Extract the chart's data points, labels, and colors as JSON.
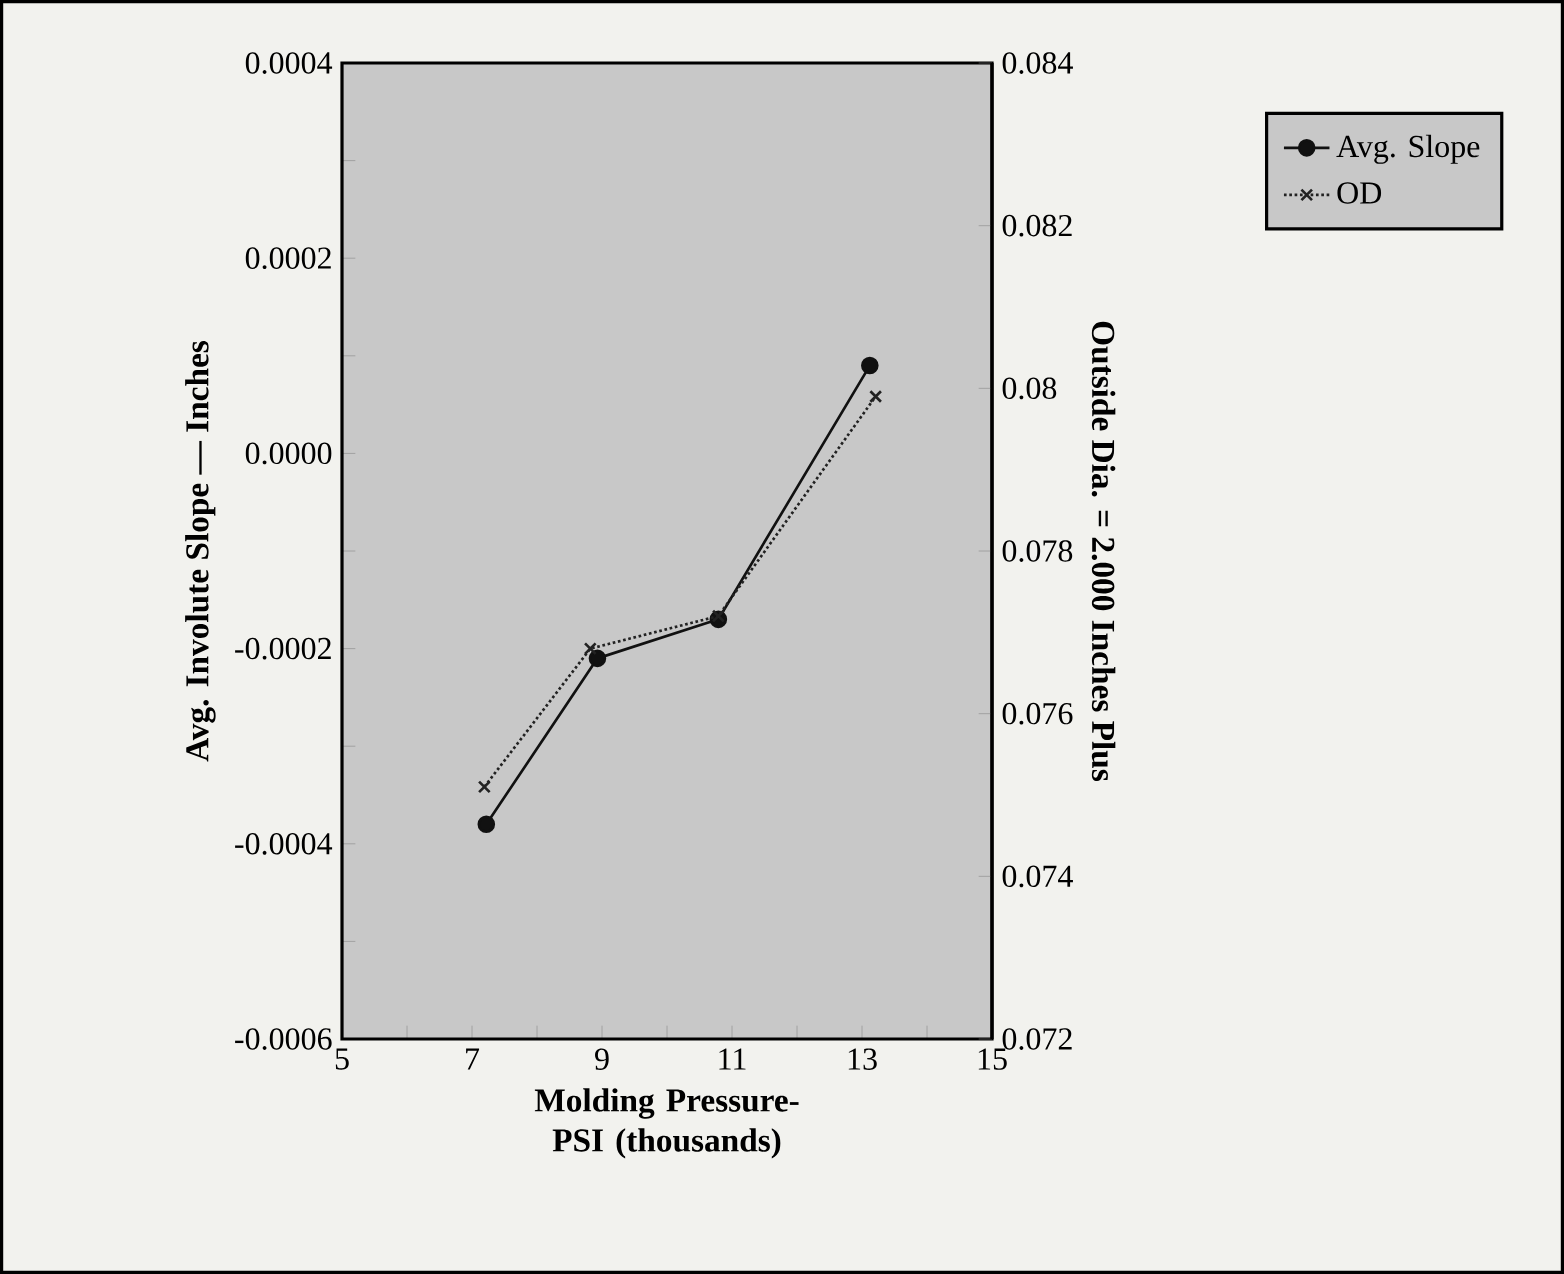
{
  "chart_data": {
    "type": "line",
    "xlabel": "Molding Pressure-PSI (thousands)",
    "ylabel": "Avg. Involute Slope — Inches",
    "y2label": "Outside Dia. = 2.000 Inches Plus",
    "xlim": [
      5,
      15
    ],
    "xticks": [
      5,
      {
        "value": 6,
        "label": null
      },
      7,
      {
        "value": 8,
        "label": null
      },
      9,
      {
        "value": 10,
        "label": null
      },
      11,
      {
        "value": 12,
        "label": null
      },
      13,
      {
        "value": 14,
        "label": null
      },
      15
    ],
    "ylim": [
      -0.0006,
      0.0004
    ],
    "yticks": [
      -0.0006,
      {
        "value": -0.0005,
        "label": null
      },
      -0.0004,
      {
        "value": -0.0003,
        "label": null
      },
      -0.0002,
      {
        "value": -0.0001,
        "label": null
      },
      {
        "value": 0,
        "label": "0.0000"
      },
      {
        "value": 0.0001,
        "label": null
      },
      0.0002,
      {
        "value": 0.0003,
        "label": null
      },
      0.0004
    ],
    "y2lim": [
      0.072,
      0.084
    ],
    "y2ticks": [
      0.072,
      0.074,
      0.076,
      0.078,
      0.08,
      0.082,
      0.084
    ],
    "legend": "right",
    "series": [
      {
        "name": "Avg. Slope",
        "color": "#111111",
        "marker": "circle",
        "line_style": "solid",
        "x": [
          7.22,
          8.93,
          10.79,
          13.12
        ],
        "values": [
          -0.00038,
          -0.00021,
          -0.00017,
          9e-05
        ]
      },
      {
        "name": "OD",
        "color": "#222222",
        "marker": "cross",
        "line_style": "dotted",
        "axis": "y2",
        "x": [
          7.19,
          8.82,
          10.79,
          13.21
        ],
        "values": [
          0.0751,
          0.0768,
          0.0772,
          0.0799
        ]
      }
    ]
  }
}
